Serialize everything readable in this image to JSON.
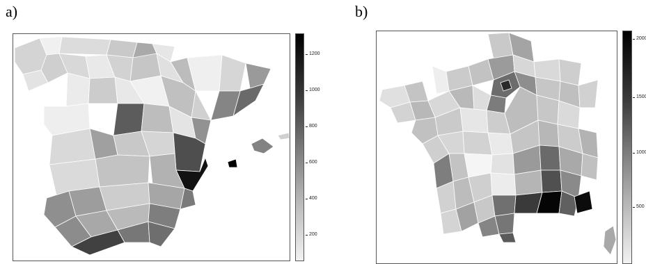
{
  "panels": [
    {
      "label": "a)",
      "colorbar_ticks": [
        "1200",
        "1000",
        "800",
        "600",
        "400",
        "200"
      ],
      "colorbar_range": [
        0,
        1300
      ]
    },
    {
      "label": "b)",
      "colorbar_ticks": [
        "2000",
        "1500",
        "1000",
        "500"
      ],
      "colorbar_range": [
        0,
        2050
      ]
    }
  ],
  "colors": {
    "lightest": "#f2f2f2",
    "darkest": "#000000",
    "frame": "#555555",
    "border": "#ffffff"
  }
}
